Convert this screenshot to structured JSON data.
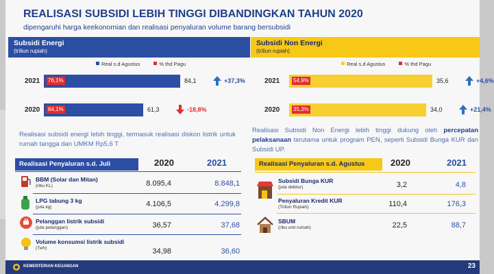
{
  "title": "REALISASI SUBSIDI LEBIH TINGGI DIBANDINGKAN TAHUN 2020",
  "subtitle": "dipengaruhi harga keekonomian dan realisasi penyaluran volume barang bersubsidi",
  "colors": {
    "blue": "#2c4ea3",
    "yellow": "#f7cf31",
    "red": "#e32c2c",
    "navy": "#243a7a"
  },
  "chart_data": [
    {
      "type": "bar",
      "title": "Subsidi Energi",
      "unit": "(triliun rupiah)",
      "legend": [
        "Real s.d Agustus",
        "% thd Pagu"
      ],
      "legend_placement": "top",
      "categories": [
        "2021",
        "2020"
      ],
      "series": [
        {
          "name": "Real s.d Agustus",
          "values": [
            84.1,
            61.3
          ],
          "labels": [
            "84,1",
            "61,3"
          ]
        },
        {
          "name": "% thd Pagu",
          "labels": [
            "76,1%",
            "64,1%"
          ]
        }
      ],
      "changes": [
        "+37,3%",
        "-18,8%"
      ],
      "change_direction": [
        "up",
        "down"
      ],
      "xlim": [
        0,
        110
      ]
    },
    {
      "type": "bar",
      "title": "Subsidi Non Energi",
      "unit": "(triliun rupiah)",
      "legend": [
        "Real s.d Agustus",
        "% thd Pagu"
      ],
      "legend_placement": "top",
      "categories": [
        "2021",
        "2020"
      ],
      "series": [
        {
          "name": "Real s.d Agustus",
          "values": [
            35.6,
            34.0
          ],
          "labels": [
            "35,6",
            "34,0"
          ]
        },
        {
          "name": "% thd Pagu",
          "labels": [
            "54,9%",
            "35,3%"
          ]
        }
      ],
      "changes": [
        "+4,6%",
        "+21,4%"
      ],
      "change_direction": [
        "up",
        "up"
      ],
      "xlim": [
        0,
        46
      ]
    }
  ],
  "energi_desc": "Realisasi subsidi energi lebih tinggi, termasuk realisasi diskon listrik untuk rumah tangga dan UMKM Rp5,6 T",
  "non_desc_1": "Realisasi Subsidi Non Energi lebih tinggi dukung oleh",
  "non_desc_bold": "percepatan pelaksanaan",
  "non_desc_2": " terutama untuk program PEN, seperti Subsidi Bunga KUR dan Subsidi UP.",
  "left_table": {
    "header": "Realisasi Penyaluran s.d. Juli",
    "year_a": "2020",
    "year_b": "2021",
    "rows": [
      {
        "label": "BBM (Solar dan Mitan)",
        "unit": "(ribu KL)",
        "v2020": "8.095,4",
        "v2021": "8.848,1"
      },
      {
        "label": "LPG tabung 3 kg",
        "unit": "(juta kg)",
        "v2020": "4.106,5",
        "v2021": "4.299,8"
      },
      {
        "label": "Pelanggan listrik subsidi",
        "unit": "(juta pelanggan)",
        "v2020": "36,57",
        "v2021": "37,68"
      },
      {
        "label": "Volume konsumsi listrik subsidi",
        "unit": "(Twh)",
        "v2020": "34,98",
        "v2021": "36,60"
      }
    ]
  },
  "right_table": {
    "header": "Realisasi Penyaluran s.d. Agustus",
    "year_a": "2020",
    "year_b": "2021",
    "rows": [
      {
        "label": "Subsidi Bunga KUR",
        "unit": "(juta debitur)",
        "v2020": "3,2",
        "v2021": "4,8"
      },
      {
        "label": "Penyaluran Kredit KUR",
        "unit": "(Triliun Rupiah)",
        "v2020": "110,4",
        "v2021": "176,3"
      },
      {
        "label": "SBUM",
        "unit": "(ribu unit rumah)",
        "v2020": "22,5",
        "v2021": "88,7"
      }
    ]
  },
  "footer_org": "KEMENTERIAN KEUANGAN",
  "page_number": "23"
}
